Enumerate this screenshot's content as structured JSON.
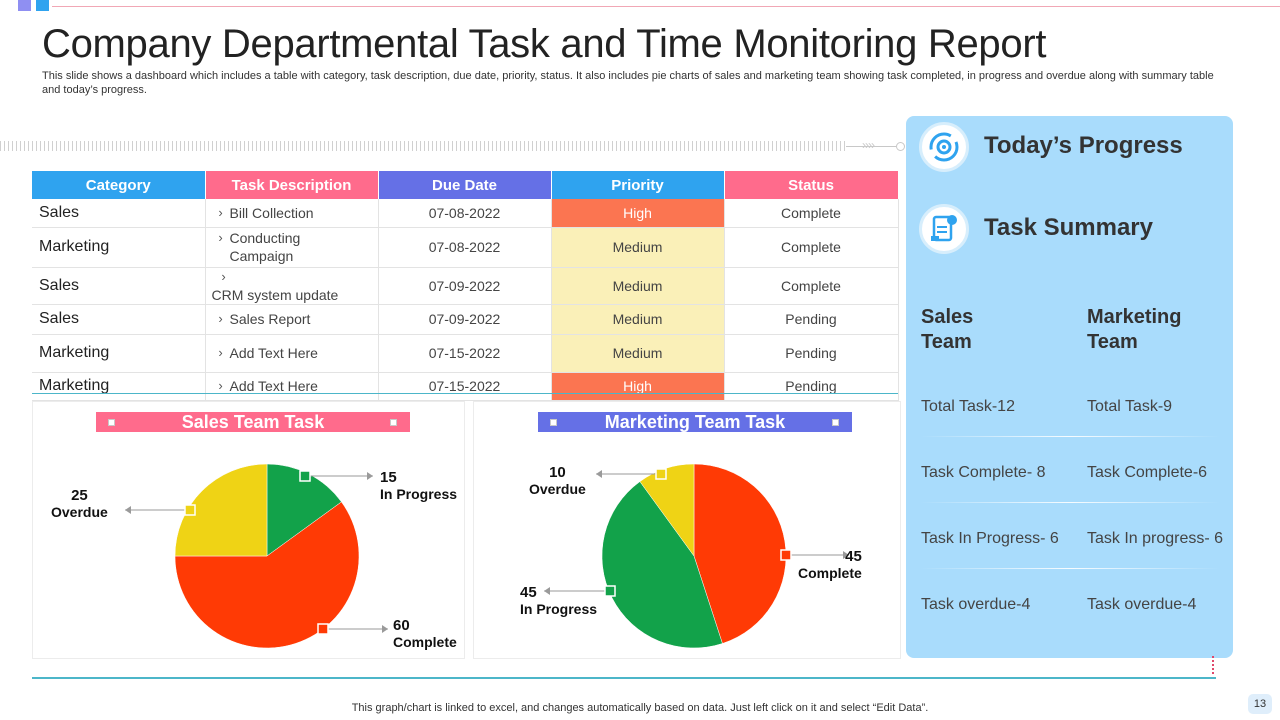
{
  "title": "Company Departmental Task and Time Monitoring Report",
  "subtitle": "This slide shows a dashboard which includes a table with category, task description, due date, priority, status. It also includes pie charts of sales and marketing team showing task completed, in progress and overdue along with summary table and today’s progress.",
  "colors": {
    "pink": "#ff6b8c",
    "blue": "#2fa3ef",
    "indigo": "#6570e6",
    "high": "#fb7551",
    "medium": "#faf0b8",
    "green": "#12a24a",
    "red": "#ff3a05",
    "yellow": "#efd315",
    "panel": "#a9dcfc"
  },
  "table": {
    "headers": [
      "Category",
      "Task Description",
      "Due Date",
      "Priority",
      "Status"
    ],
    "rows": [
      {
        "category": "Sales",
        "description": "Bill Collection",
        "due": "07-08-2022",
        "priority": "High",
        "status": "Complete"
      },
      {
        "category": "Marketing",
        "description": "Conducting Campaign",
        "due": "07-08-2022",
        "priority": "Medium",
        "status": "Complete"
      },
      {
        "category": "Sales",
        "description": "CRM system update",
        "due": "07-09-2022",
        "priority": "Medium",
        "status": "Complete"
      },
      {
        "category": "Sales",
        "description": "Sales Report",
        "due": "07-09-2022",
        "priority": "Medium",
        "status": "Pending"
      },
      {
        "category": "Marketing",
        "description": "Add Text Here",
        "due": "07-15-2022",
        "priority": "Medium",
        "status": "Pending"
      },
      {
        "category": "Marketing",
        "description": "Add Text Here",
        "due": "07-15-2022",
        "priority": "High",
        "status": "Pending"
      }
    ]
  },
  "chart_data": [
    {
      "type": "pie",
      "title": "Sales Team Task",
      "slices": [
        {
          "label": "In Progress",
          "value": 15,
          "color": "#12a24a"
        },
        {
          "label": "Complete",
          "value": 60,
          "color": "#ff3a05"
        },
        {
          "label": "Overdue",
          "value": 25,
          "color": "#efd315"
        }
      ]
    },
    {
      "type": "pie",
      "title": "Marketing Team Task",
      "slices": [
        {
          "label": "Complete",
          "value": 45,
          "color": "#ff3a05"
        },
        {
          "label": "In Progress",
          "value": 45,
          "color": "#12a24a"
        },
        {
          "label": "Overdue",
          "value": 10,
          "color": "#efd315"
        }
      ]
    }
  ],
  "right_panel": {
    "progress_title": "Today’s Progress",
    "summary_title": "Task Summary",
    "progress_icon": "refresh-gear-icon",
    "summary_icon": "document-money-icon",
    "sales_head_1": "Sales",
    "sales_head_2": "Team",
    "marketing_head_1": "Marketing",
    "marketing_head_2": "Team",
    "sales_stats": [
      "Total Task-12",
      "Task Complete- 8",
      "Task In Progress- 6",
      "Task overdue-4"
    ],
    "marketing_stats": [
      "Total Task-9",
      "Task Complete-6",
      "Task In progress- 6",
      "Task overdue-4"
    ]
  },
  "footer_note": "This graph/chart is linked to excel,  and changes automatically based on data. Just left click on it and select “Edit Data”.",
  "page_number": "13"
}
